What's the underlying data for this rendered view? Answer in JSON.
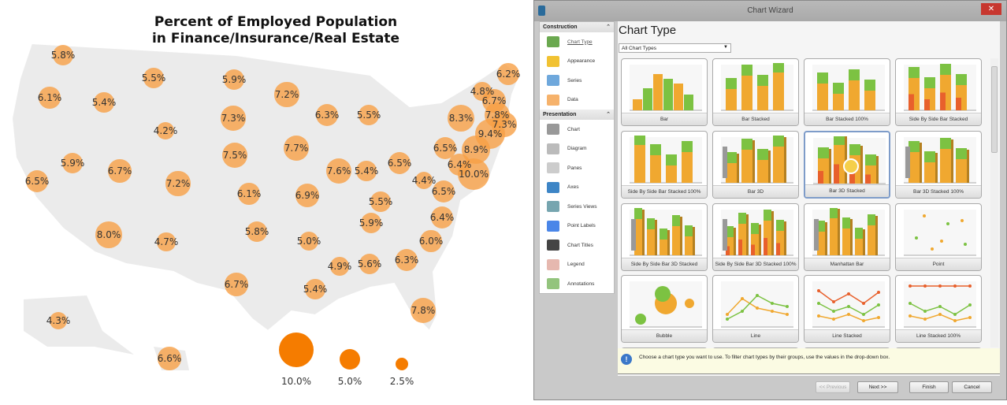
{
  "map": {
    "title_line1": "Percent of Employed Population",
    "title_line2": "in Finance/Insurance/Real Estate",
    "bubble_color": "#f7a046",
    "bubbles": [
      "5.8%",
      "5.5%",
      "5.9%",
      "7.2%",
      "6.3%",
      "5.5%",
      "6.1%",
      "5.4%",
      "7.3%",
      "4.2%",
      "7.7%",
      "7.5%",
      "5.9%",
      "6.7%",
      "7.6%",
      "5.4%",
      "6.5%",
      "6.5%",
      "7.2%",
      "6.1%",
      "6.9%",
      "4.4%",
      "6.5%",
      "5.5%",
      "6.4%",
      "5.9%",
      "8.0%",
      "4.7%",
      "5.8%",
      "5.0%",
      "6.0%",
      "4.9%",
      "5.6%",
      "6.3%",
      "6.7%",
      "5.4%",
      "7.8%",
      "4.3%",
      "6.6%",
      "6.2%",
      "4.8%",
      "6.7%",
      "8.3%",
      "7.8%",
      "7.3%",
      "9.4%",
      "6.5%",
      "8.9%",
      "6.4%",
      "10.0%"
    ],
    "legend": [
      "10.0%",
      "5.0%",
      "2.5%"
    ],
    "legend_color": "#f57c00"
  },
  "wizard": {
    "title": "Chart Wizard",
    "close": "✕",
    "construction": "Construction",
    "presentation": "Presentation",
    "construction_items": [
      "Chart Type",
      "Appearance",
      "Series",
      "Data"
    ],
    "presentation_items": [
      "Chart",
      "Diagram",
      "Panes",
      "Axes",
      "Series Views",
      "Point Labels",
      "Chart Titles",
      "Legend",
      "Annotations"
    ],
    "heading": "Chart Type",
    "filter": "All Chart Types",
    "charts": [
      "Bar",
      "Bar Stacked",
      "Bar Stacked 100%",
      "Side By Side Bar Stacked",
      "Side By Side Bar Stacked 100%",
      "Bar 3D",
      "Bar 3D Stacked",
      "Bar 3D Stacked 100%",
      "Side By Side Bar 3D Stacked",
      "Side By Side Bar 3D Stacked 100%",
      "Manhattan Bar",
      "Point",
      "Bubble",
      "Line",
      "Line Stacked",
      "Line Stacked 100%"
    ],
    "selected": "Bar 3D Stacked",
    "info": "Choose a chart type you want to use. To filter chart types by their groups, use the values in the drop-down box.",
    "buttons": {
      "previous": "<< Previous",
      "next": "Next >>",
      "finish": "Finish",
      "cancel": "Cancel"
    }
  }
}
